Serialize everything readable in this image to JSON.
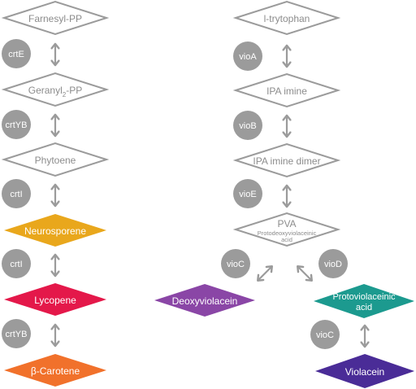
{
  "pathways": {
    "carotenoid": {
      "nodes": [
        {
          "label": "Farnesyl-PP",
          "fill": "#ffffff",
          "stroke": "#9b9b9b",
          "text_color": "#8c8c8c"
        },
        {
          "label": "Geranyl",
          "sub": "2",
          "label_suffix": "-PP",
          "fill": "#ffffff",
          "stroke": "#9b9b9b",
          "text_color": "#8c8c8c"
        },
        {
          "label": "Phytoene",
          "fill": "#ffffff",
          "stroke": "#9b9b9b",
          "text_color": "#8c8c8c"
        },
        {
          "label": "Neurosporene",
          "fill": "#e9a71c",
          "stroke": "#e9a71c",
          "text_color": "#ffffff"
        },
        {
          "label": "Lycopene",
          "fill": "#e4184a",
          "stroke": "#e4184a",
          "text_color": "#ffffff"
        },
        {
          "label": "β-Carotene",
          "fill": "#f1712b",
          "stroke": "#f1712b",
          "text_color": "#ffffff"
        }
      ],
      "enzymes": [
        "crtE",
        "crtYB",
        "crtI",
        "crtI",
        "crtYB"
      ]
    },
    "violacein": {
      "nodes": [
        {
          "label": "l-trytophan",
          "fill": "#ffffff",
          "stroke": "#9b9b9b",
          "text_color": "#8c8c8c"
        },
        {
          "label": "IPA imine",
          "fill": "#ffffff",
          "stroke": "#9b9b9b",
          "text_color": "#8c8c8c"
        },
        {
          "label": "IPA imine dimer",
          "fill": "#ffffff",
          "stroke": "#9b9b9b",
          "text_color": "#8c8c8c"
        },
        {
          "label": "PVA",
          "subtitle_line1": "Protodeoxyviolaceinic",
          "subtitle_line2": "acid",
          "fill": "#ffffff",
          "stroke": "#9b9b9b",
          "text_color": "#8c8c8c"
        }
      ],
      "enzymes": [
        "vioA",
        "vioB",
        "vioE",
        "vioC",
        "vioD",
        "vioC"
      ],
      "products": {
        "deoxyviolacein": {
          "label": "Deoxyviolacein",
          "fill": "#8a46a6",
          "text_color": "#ffffff"
        },
        "protoviolaceinic": {
          "line1": "Protoviolaceinic",
          "line2": "acid",
          "fill": "#1c9a8f",
          "text_color": "#ffffff"
        },
        "violacein": {
          "label": "Violacein",
          "fill": "#4a2c97",
          "text_color": "#ffffff"
        }
      }
    }
  },
  "style": {
    "enzyme_circle": "#9b9b9b",
    "arrow": "#9b9b9b"
  }
}
